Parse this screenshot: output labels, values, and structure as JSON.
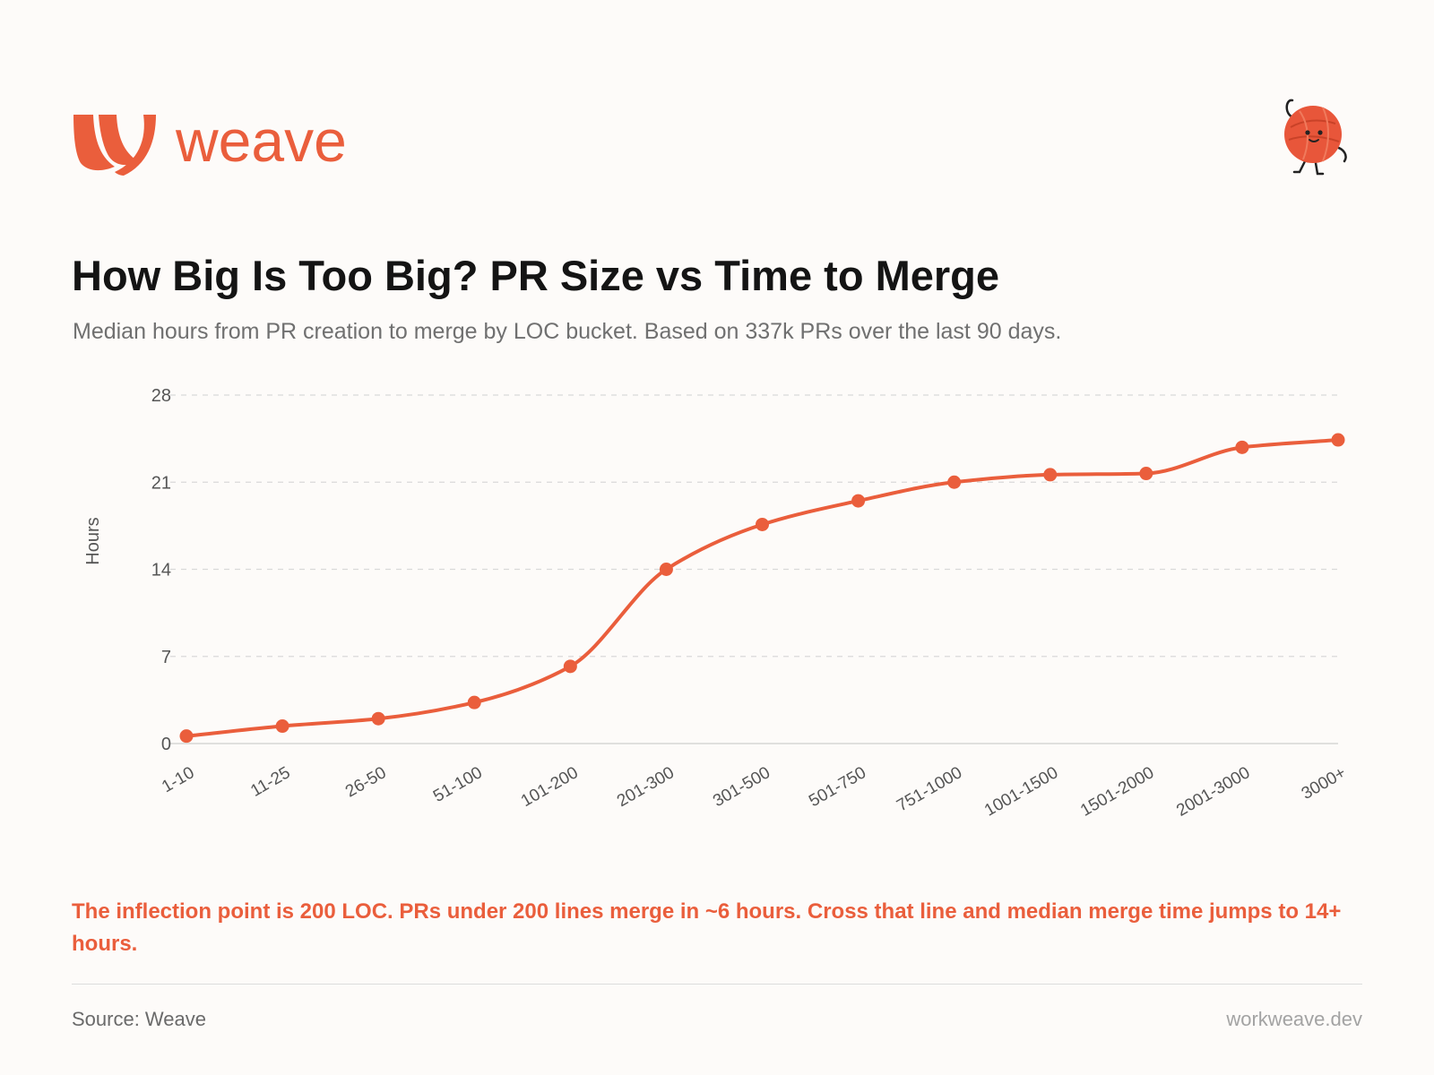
{
  "brand": {
    "name": "weave",
    "color": "#ea5e3c",
    "logo_icon": "weave-logo-icon",
    "mascot_icon": "yarn-ball-mascot-icon"
  },
  "title": "How Big Is Too Big? PR Size vs Time to Merge",
  "subtitle": "Median hours from PR creation to merge by LOC bucket. Based on 337k PRs over the last 90 days.",
  "chart_data": {
    "type": "line",
    "categories": [
      "1-10",
      "11-25",
      "26-50",
      "51-100",
      "101-200",
      "201-300",
      "301-500",
      "501-750",
      "751-1000",
      "1001-1500",
      "1501-2000",
      "2001-3000",
      "3000+"
    ],
    "series": [
      {
        "values": [
          0.6,
          1.4,
          2.0,
          3.3,
          6.2,
          14.0,
          17.6,
          19.5,
          21.0,
          21.6,
          21.7,
          23.8,
          24.4
        ],
        "color": "#ea5e3c"
      }
    ],
    "ylabel": "Hours",
    "xlabel": "",
    "ylim": [
      0,
      28
    ],
    "yticks": [
      0,
      7,
      14,
      21,
      28
    ],
    "grid": true,
    "grid_style": "dashed",
    "markers": true,
    "smooth": true
  },
  "callout": "The inflection point is 200 LOC. PRs under 200 lines merge in ~6 hours. Cross that line and median merge time jumps to 14+ hours.",
  "footer": {
    "source": "Source: Weave",
    "site": "workweave.dev"
  }
}
